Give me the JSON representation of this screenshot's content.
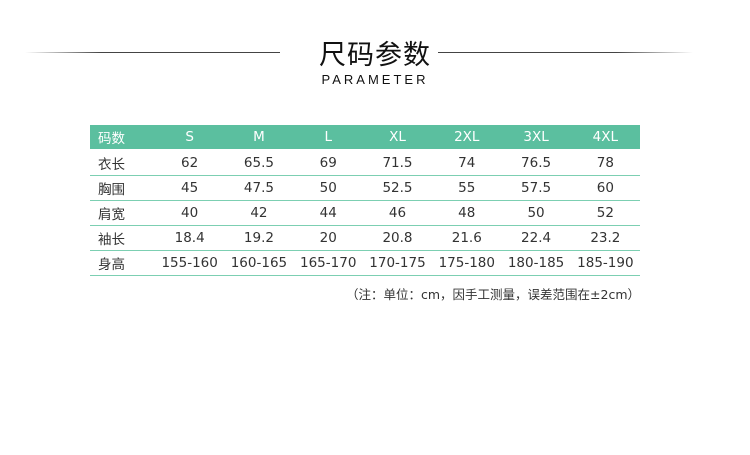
{
  "title": "尺码参数",
  "subtitle": "PARAMETER",
  "header_color": "#5bbf9f",
  "table": {
    "headers": [
      "码数",
      "S",
      "M",
      "L",
      "XL",
      "2XL",
      "3XL",
      "4XL"
    ],
    "rows": [
      [
        "衣长",
        "62",
        "65.5",
        "69",
        "71.5",
        "74",
        "76.5",
        "78"
      ],
      [
        "胸围",
        "45",
        "47.5",
        "50",
        "52.5",
        "55",
        "57.5",
        "60"
      ],
      [
        "肩宽",
        "40",
        "42",
        "44",
        "46",
        "48",
        "50",
        "52"
      ],
      [
        "袖长",
        "18.4",
        "19.2",
        "20",
        "20.8",
        "21.6",
        "22.4",
        "23.2"
      ],
      [
        "身高",
        "155-160",
        "160-165",
        "165-170",
        "170-175",
        "175-180",
        "180-185",
        "185-190"
      ]
    ]
  },
  "note": "（注：单位：cm，因手工测量，误差范围在±2cm）"
}
